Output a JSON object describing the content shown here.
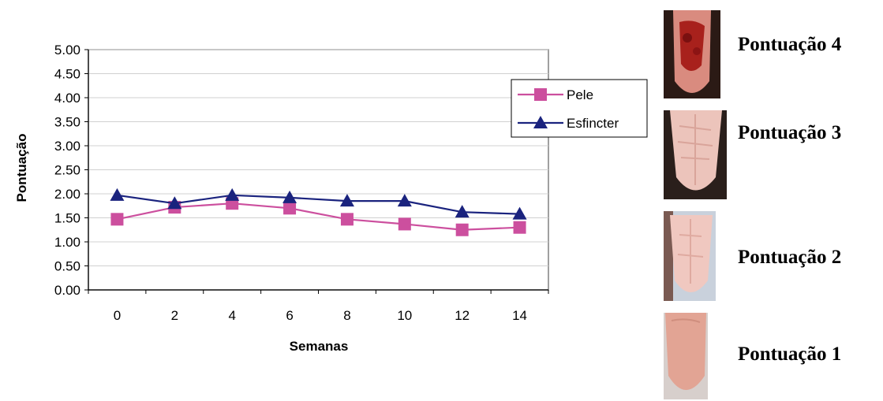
{
  "chart_data": {
    "type": "line",
    "title": "",
    "xlabel": "Semanas",
    "ylabel": "Pontuação",
    "x": [
      "0",
      "2",
      "4",
      "6",
      "8",
      "10",
      "12",
      "14"
    ],
    "ylim": [
      0,
      5
    ],
    "yticks": [
      "0.00",
      "0.50",
      "1.00",
      "1.50",
      "2.00",
      "2.50",
      "3.00",
      "3.50",
      "4.00",
      "4.50",
      "5.00"
    ],
    "grid": true,
    "legend_position": "right",
    "series": [
      {
        "name": "Pele",
        "marker": "square",
        "color": "#cc4f9e",
        "values": [
          1.47,
          1.72,
          1.8,
          1.7,
          1.47,
          1.37,
          1.25,
          1.3
        ]
      },
      {
        "name": "Esfincter",
        "marker": "triangle",
        "color": "#1a237e",
        "values": [
          1.97,
          1.8,
          1.97,
          1.92,
          1.85,
          1.85,
          1.62,
          1.58
        ]
      }
    ]
  },
  "score_panel": [
    {
      "label": "Pontuação 4",
      "icon": "tongue-score-4-photo",
      "color": "#b5231e"
    },
    {
      "label": "Pontuação 3",
      "icon": "tongue-score-3-photo",
      "color": "#e8b8b0"
    },
    {
      "label": "Pontuação 2",
      "icon": "tongue-score-2-photo",
      "color": "#efc2bb"
    },
    {
      "label": "Pontuação 1",
      "icon": "tongue-score-1-photo",
      "color": "#e0a393"
    }
  ]
}
